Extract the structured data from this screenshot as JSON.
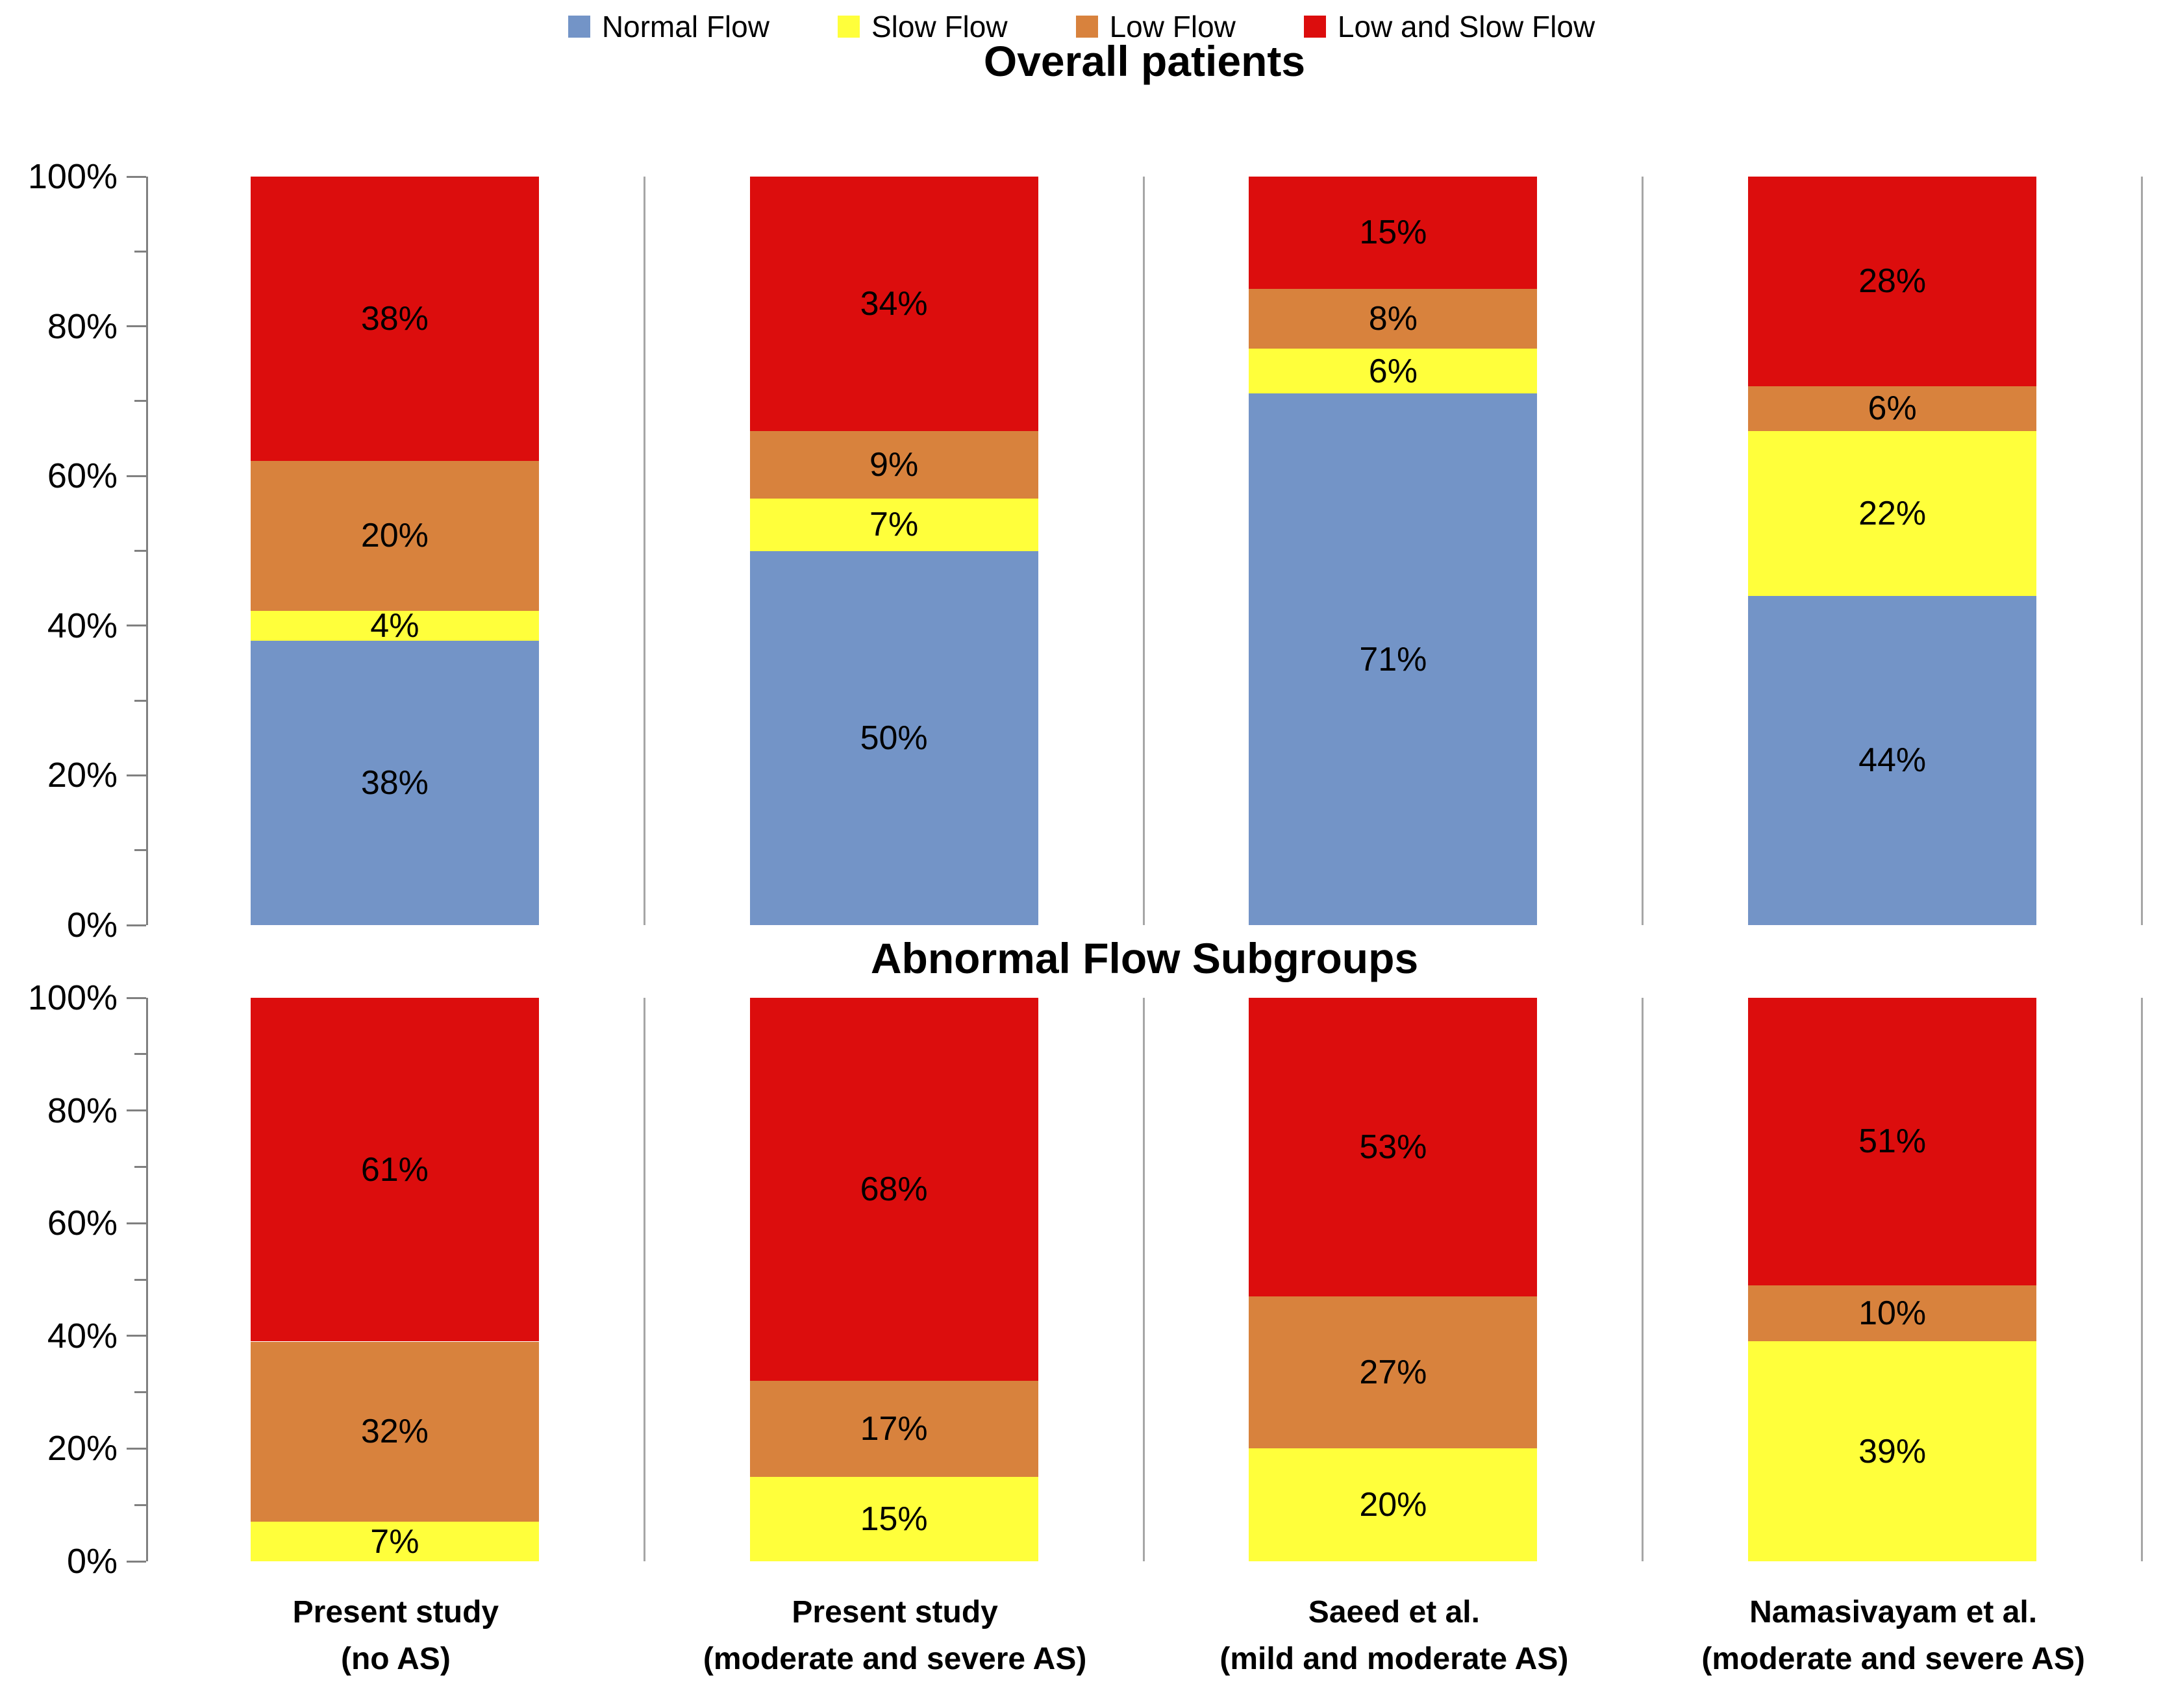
{
  "legend": {
    "items": [
      {
        "key": "normal-flow",
        "label": "Normal Flow",
        "color": "#7394C7"
      },
      {
        "key": "slow-flow",
        "label": "Slow Flow",
        "color": "#FFFF3B"
      },
      {
        "key": "low-flow",
        "label": "Low Flow",
        "color": "#D8823D"
      },
      {
        "key": "low-and-slow-flow",
        "label": "Low and Slow Flow",
        "color": "#DC0D0D"
      }
    ]
  },
  "axis": {
    "tick_labels": [
      "100%",
      "80%",
      "60%",
      "40%",
      "20%",
      "0%"
    ],
    "major_step": 20,
    "minor_step": 10,
    "line_color": "#808080"
  },
  "separator_color": "#A6A6A6",
  "categories": [
    {
      "line1": "Present study",
      "line2": "(no AS)"
    },
    {
      "line1": "Present study",
      "line2": "(moderate and severe AS)"
    },
    {
      "line1": "Saeed et al.",
      "line2": "(mild and moderate AS)"
    },
    {
      "line1": "Namasivayam et al.",
      "line2": "(moderate and severe AS)"
    }
  ],
  "chart_data": [
    {
      "type": "bar",
      "stacked": true,
      "title": "Overall patients",
      "categories": [
        "Present study (no AS)",
        "Present study (moderate and severe AS)",
        "Saeed et al. (mild and moderate AS)",
        "Namasivayam et al. (moderate and severe AS)"
      ],
      "series": [
        {
          "name": "Normal Flow",
          "color": "#7394C7",
          "values": [
            38,
            50,
            71,
            44
          ]
        },
        {
          "name": "Slow Flow",
          "color": "#FFFF3B",
          "values": [
            4,
            7,
            6,
            22
          ]
        },
        {
          "name": "Low Flow",
          "color": "#D8823D",
          "values": [
            20,
            9,
            8,
            6
          ]
        },
        {
          "name": "Low and Slow Flow",
          "color": "#DC0D0D",
          "values": [
            38,
            34,
            15,
            28
          ]
        }
      ],
      "ylim": [
        0,
        100
      ],
      "xlabel": "",
      "ylabel": "",
      "grid": false,
      "legend_position": "top",
      "value_label_suffix": "%"
    },
    {
      "type": "bar",
      "stacked": true,
      "title": "Abnormal Flow Subgroups",
      "categories": [
        "Present study (no AS)",
        "Present study (moderate and severe AS)",
        "Saeed et al. (mild and moderate AS)",
        "Namasivayam et al. (moderate and severe AS)"
      ],
      "series": [
        {
          "name": "Slow Flow",
          "color": "#FFFF3B",
          "values": [
            7,
            15,
            20,
            39
          ]
        },
        {
          "name": "Low Flow",
          "color": "#D8823D",
          "values": [
            32,
            17,
            27,
            10
          ]
        },
        {
          "name": "Low and Slow Flow",
          "color": "#DC0D0D",
          "values": [
            61,
            68,
            53,
            51
          ]
        }
      ],
      "ylim": [
        0,
        100
      ],
      "xlabel": "",
      "ylabel": "",
      "grid": false,
      "value_label_suffix": "%"
    }
  ]
}
